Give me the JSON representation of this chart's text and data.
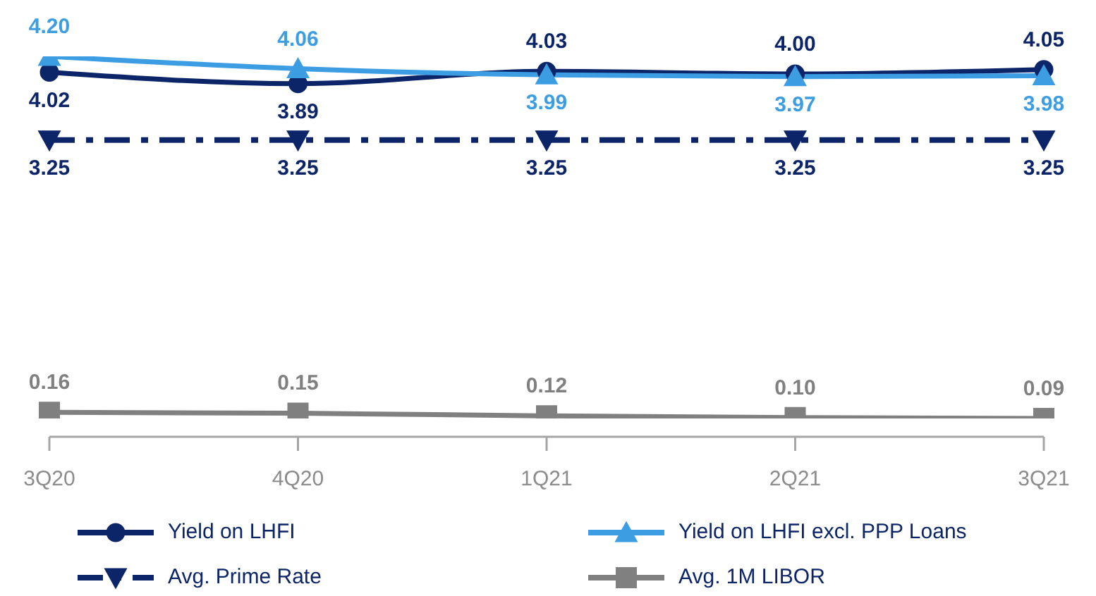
{
  "chart_data": {
    "type": "line",
    "categories": [
      "3Q20",
      "4Q20",
      "1Q21",
      "2Q21",
      "3Q21"
    ],
    "series": [
      {
        "name": "Yield on LHFI",
        "color": "#0c2468",
        "values": [
          4.02,
          3.89,
          4.03,
          4.0,
          4.05
        ],
        "value_labels": [
          "4.02",
          "3.89",
          "4.03",
          "4.00",
          "4.05"
        ],
        "marker": "circle",
        "line_style": "solid"
      },
      {
        "name": "Yield on LHFI excl. PPP Loans",
        "color": "#3d9de3",
        "values": [
          4.2,
          4.06,
          3.99,
          3.97,
          3.98
        ],
        "value_labels": [
          "4.20",
          "4.06",
          "3.99",
          "3.97",
          "3.98"
        ],
        "marker": "triangle",
        "line_style": "solid"
      },
      {
        "name": "Avg. Prime Rate",
        "color": "#0c2468",
        "values": [
          3.25,
          3.25,
          3.25,
          3.25,
          3.25
        ],
        "value_labels": [
          "3.25",
          "3.25",
          "3.25",
          "3.25",
          "3.25"
        ],
        "marker": "triangle-down",
        "line_style": "dashed"
      },
      {
        "name": "Avg. 1M LIBOR",
        "color": "#808080",
        "values": [
          0.16,
          0.15,
          0.12,
          0.1,
          0.09
        ],
        "value_labels": [
          "0.16",
          "0.15",
          "0.12",
          "0.10",
          "0.09"
        ],
        "marker": "square",
        "line_style": "solid"
      }
    ],
    "legend": "bottom",
    "tick_labels": "x"
  }
}
